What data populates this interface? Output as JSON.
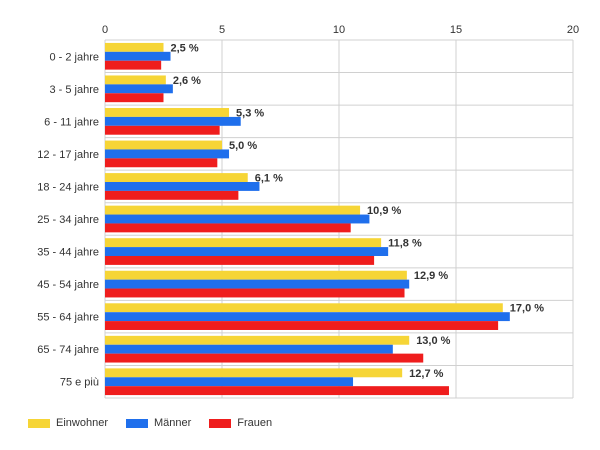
{
  "chart_data": {
    "type": "bar",
    "orientation": "horizontal",
    "categories": [
      "0 - 2 jahre",
      "3 - 5 jahre",
      "6 - 11 jahre",
      "12 - 17 jahre",
      "18 - 24 jahre",
      "25 - 34 jahre",
      "35 - 44 jahre",
      "45 - 54 jahre",
      "55 - 64 jahre",
      "65 - 74 jahre",
      "75 e più"
    ],
    "series": [
      {
        "name": "Einwohner",
        "color": "#f6d536",
        "values": [
          2.5,
          2.6,
          5.3,
          5.0,
          6.1,
          10.9,
          11.8,
          12.9,
          17.0,
          13.0,
          12.7
        ]
      },
      {
        "name": "Männer",
        "color": "#1f6fec",
        "values": [
          2.8,
          2.9,
          5.8,
          5.3,
          6.6,
          11.3,
          12.1,
          13.0,
          17.3,
          12.3,
          10.6
        ]
      },
      {
        "name": "Frauen",
        "color": "#ef1d1d",
        "values": [
          2.4,
          2.5,
          4.9,
          4.8,
          5.7,
          10.5,
          11.5,
          12.8,
          16.8,
          13.6,
          14.7
        ]
      }
    ],
    "data_labels": [
      "2,5 %",
      "2,6 %",
      "5,3 %",
      "5,0 %",
      "6,1 %",
      "10,9 %",
      "11,8 %",
      "12,9 %",
      "17,0 %",
      "13,0 %",
      "12,7 %"
    ],
    "xticks": [
      "0",
      "5",
      "10",
      "15",
      "20"
    ],
    "xlim": [
      0,
      20
    ],
    "title": "",
    "xlabel": "",
    "ylabel": "",
    "grid": true,
    "legend_position": "bottom-left"
  }
}
